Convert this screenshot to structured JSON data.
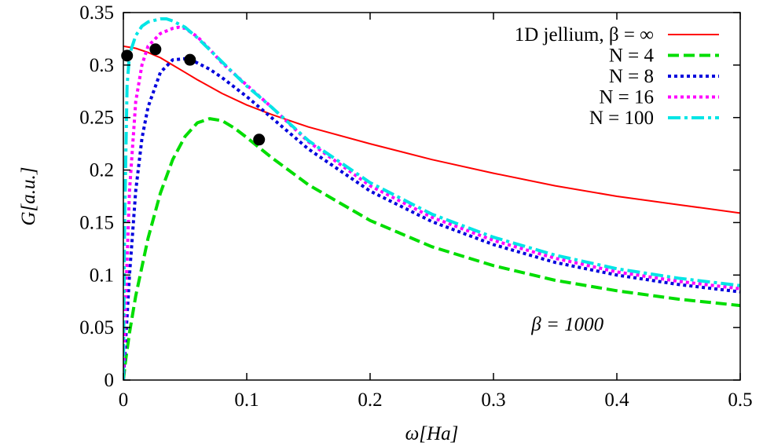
{
  "chart_data": {
    "type": "line",
    "title": "",
    "xlabel": "ω[Ha]",
    "ylabel": "G[a.u.]",
    "xlim": [
      0,
      0.5
    ],
    "ylim": [
      0,
      0.35
    ],
    "x_ticks": [
      0,
      0.1,
      0.2,
      0.3,
      0.4,
      0.5
    ],
    "x_tick_labels": [
      "0",
      "0.1",
      "0.2",
      "0.3",
      "0.4",
      "0.5"
    ],
    "y_ticks": [
      0,
      0.05,
      0.1,
      0.15,
      0.2,
      0.25,
      0.3,
      0.35
    ],
    "y_tick_labels": [
      "0",
      "0.05",
      "0.1",
      "0.15",
      "0.2",
      "0.25",
      "0.3",
      "0.35"
    ],
    "grid": false,
    "legend_position": "top-right",
    "annotation": "β = 1000",
    "series": [
      {
        "name": "1D jellium, β = ∞",
        "color": "#ff0000",
        "style": "solid",
        "x": [
          0,
          0.01,
          0.02,
          0.03,
          0.04,
          0.05,
          0.06,
          0.08,
          0.1,
          0.12,
          0.15,
          0.2,
          0.25,
          0.3,
          0.35,
          0.4,
          0.45,
          0.5
        ],
        "y": [
          0.318,
          0.316,
          0.312,
          0.307,
          0.3,
          0.293,
          0.286,
          0.273,
          0.262,
          0.253,
          0.241,
          0.225,
          0.21,
          0.197,
          0.185,
          0.175,
          0.167,
          0.159
        ]
      },
      {
        "name": "N = 4",
        "color": "#00dd00",
        "style": "dashed",
        "x": [
          0,
          0.002,
          0.005,
          0.01,
          0.02,
          0.03,
          0.04,
          0.05,
          0.06,
          0.07,
          0.08,
          0.09,
          0.1,
          0.12,
          0.15,
          0.2,
          0.25,
          0.3,
          0.35,
          0.4,
          0.45,
          0.5
        ],
        "y": [
          0,
          0.02,
          0.045,
          0.08,
          0.135,
          0.178,
          0.21,
          0.232,
          0.245,
          0.249,
          0.247,
          0.24,
          0.231,
          0.212,
          0.186,
          0.152,
          0.127,
          0.109,
          0.095,
          0.085,
          0.077,
          0.071
        ]
      },
      {
        "name": "N = 8",
        "color": "#0000dd",
        "style": "dotted",
        "x": [
          0,
          0.002,
          0.005,
          0.01,
          0.015,
          0.02,
          0.03,
          0.04,
          0.05,
          0.055,
          0.06,
          0.07,
          0.08,
          0.1,
          0.12,
          0.15,
          0.2,
          0.25,
          0.3,
          0.35,
          0.4,
          0.45,
          0.5
        ],
        "y": [
          0,
          0.04,
          0.1,
          0.18,
          0.23,
          0.26,
          0.293,
          0.305,
          0.306,
          0.305,
          0.302,
          0.296,
          0.288,
          0.27,
          0.25,
          0.22,
          0.18,
          0.151,
          0.129,
          0.112,
          0.1,
          0.091,
          0.084
        ]
      },
      {
        "name": "N = 16",
        "color": "#ff00ff",
        "style": "dotted",
        "x": [
          0,
          0.002,
          0.005,
          0.01,
          0.015,
          0.02,
          0.03,
          0.04,
          0.045,
          0.05,
          0.06,
          0.07,
          0.08,
          0.1,
          0.12,
          0.15,
          0.2,
          0.25,
          0.3,
          0.35,
          0.4,
          0.45,
          0.5
        ],
        "y": [
          0,
          0.08,
          0.18,
          0.265,
          0.3,
          0.318,
          0.33,
          0.335,
          0.336,
          0.335,
          0.327,
          0.315,
          0.302,
          0.281,
          0.26,
          0.227,
          0.185,
          0.155,
          0.133,
          0.116,
          0.103,
          0.094,
          0.087
        ]
      },
      {
        "name": "N = 100",
        "color": "#00e5e5",
        "style": "dash-dot",
        "x": [
          0,
          0.001,
          0.003,
          0.005,
          0.01,
          0.015,
          0.02,
          0.03,
          0.035,
          0.04,
          0.05,
          0.06,
          0.08,
          0.1,
          0.12,
          0.15,
          0.2,
          0.25,
          0.3,
          0.35,
          0.4,
          0.45,
          0.5
        ],
        "y": [
          0,
          0.15,
          0.28,
          0.31,
          0.328,
          0.337,
          0.341,
          0.344,
          0.344,
          0.342,
          0.336,
          0.326,
          0.303,
          0.28,
          0.26,
          0.228,
          0.188,
          0.158,
          0.136,
          0.119,
          0.106,
          0.097,
          0.09
        ]
      }
    ],
    "markers": {
      "color": "#000000",
      "points": [
        {
          "x": 0.003,
          "y": 0.309
        },
        {
          "x": 0.026,
          "y": 0.315
        },
        {
          "x": 0.054,
          "y": 0.305
        },
        {
          "x": 0.11,
          "y": 0.229
        }
      ]
    }
  }
}
